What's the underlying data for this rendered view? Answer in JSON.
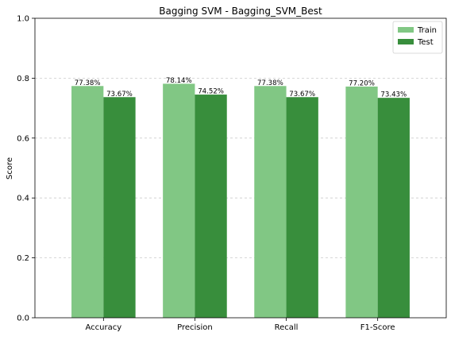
{
  "chart_data": {
    "type": "bar",
    "title": "Bagging SVM - Bagging_SVM_Best",
    "xlabel": "",
    "ylabel": "Score",
    "ylim": [
      0,
      1.0
    ],
    "yticks": [
      "0.0",
      "0.2",
      "0.4",
      "0.6",
      "0.8",
      "1.0"
    ],
    "grid": "y-dashed",
    "legend_position": "top-right",
    "categories": [
      "Accuracy",
      "Precision",
      "Recall",
      "F1-Score"
    ],
    "series": [
      {
        "name": "Train",
        "color": "#81c784",
        "values": [
          0.7738,
          0.7814,
          0.7738,
          0.772
        ],
        "labels": [
          "77.38%",
          "78.14%",
          "77.38%",
          "77.20%"
        ]
      },
      {
        "name": "Test",
        "color": "#388e3c",
        "values": [
          0.7367,
          0.7452,
          0.7367,
          0.7343
        ],
        "labels": [
          "73.67%",
          "74.52%",
          "73.67%",
          "73.43%"
        ]
      }
    ]
  }
}
